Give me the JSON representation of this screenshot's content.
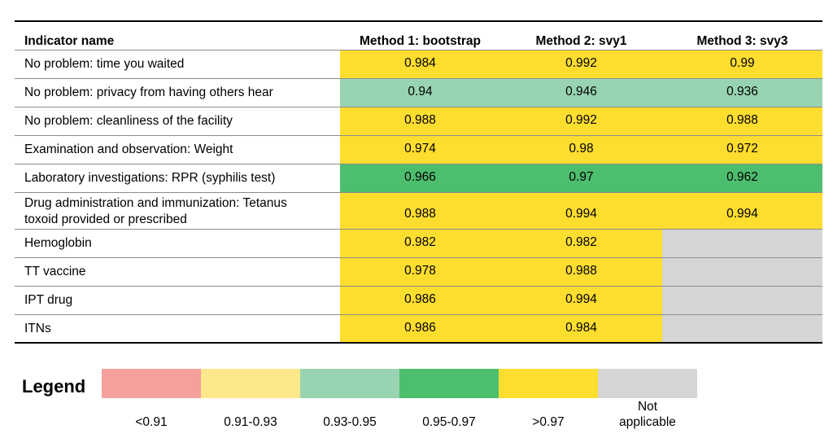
{
  "table": {
    "headers": [
      "Indicator name",
      "Method 1: bootstrap",
      "Method 2: svy1",
      "Method 3: svy3"
    ],
    "rows": [
      {
        "name": "No problem: time you waited",
        "values": [
          "0.984",
          "0.992",
          "0.99"
        ],
        "categories": [
          "gt097",
          "gt097",
          "gt097"
        ]
      },
      {
        "name": "No problem: privacy from having others hear",
        "values": [
          "0.94",
          "0.946",
          "0.936"
        ],
        "categories": [
          "r093_095",
          "r093_095",
          "r093_095"
        ]
      },
      {
        "name": "No problem: cleanliness of the facility",
        "values": [
          "0.988",
          "0.992",
          "0.988"
        ],
        "categories": [
          "gt097",
          "gt097",
          "gt097"
        ]
      },
      {
        "name": "Examination and observation: Weight",
        "values": [
          "0.974",
          "0.98",
          "0.972"
        ],
        "categories": [
          "gt097",
          "gt097",
          "gt097"
        ]
      },
      {
        "name": "Laboratory investigations: RPR (syphilis test)",
        "values": [
          "0.966",
          "0.97",
          "0.962"
        ],
        "categories": [
          "r095_097",
          "r095_097",
          "r095_097"
        ]
      },
      {
        "name": "Drug administration and immunization: Tetanus\ntoxoid provided or prescribed",
        "values": [
          "0.988",
          "0.994",
          "0.994"
        ],
        "categories": [
          "gt097",
          "gt097",
          "gt097"
        ]
      },
      {
        "name": "Hemoglobin",
        "values": [
          "0.982",
          "0.982",
          ""
        ],
        "categories": [
          "gt097",
          "gt097",
          "na"
        ]
      },
      {
        "name": "TT vaccine",
        "values": [
          "0.978",
          "0.988",
          ""
        ],
        "categories": [
          "gt097",
          "gt097",
          "na"
        ]
      },
      {
        "name": "IPT drug",
        "values": [
          "0.986",
          "0.994",
          ""
        ],
        "categories": [
          "gt097",
          "gt097",
          "na"
        ]
      },
      {
        "name": "ITNs",
        "values": [
          "0.986",
          "0.984",
          ""
        ],
        "categories": [
          "gt097",
          "gt097",
          "na"
        ]
      }
    ]
  },
  "legend": {
    "title": "Legend",
    "items": [
      {
        "key": "lt091",
        "label": "<0.91",
        "color": "#f4a09c"
      },
      {
        "key": "r091_093",
        "label": "0.91-0.93",
        "color": "#fde98b"
      },
      {
        "key": "r093_095",
        "label": "0.93-0.95",
        "color": "#98d4b1"
      },
      {
        "key": "r095_097",
        "label": "0.95-0.97",
        "color": "#4dbd6e"
      },
      {
        "key": "gt097",
        "label": ">0.97",
        "color": "#fddd2e"
      },
      {
        "key": "na",
        "label": "Not\napplicable",
        "color": "#d5d5d5"
      }
    ]
  },
  "chart_data": {
    "type": "table",
    "columns": [
      "Indicator name",
      "Method 1: bootstrap",
      "Method 2: svy1",
      "Method 3: svy3"
    ],
    "rows": [
      [
        "No problem: time you waited",
        0.984,
        0.992,
        0.99
      ],
      [
        "No problem: privacy from having others hear",
        0.94,
        0.946,
        0.936
      ],
      [
        "No problem: cleanliness of the facility",
        0.988,
        0.992,
        0.988
      ],
      [
        "Examination and observation: Weight",
        0.974,
        0.98,
        0.972
      ],
      [
        "Laboratory investigations: RPR (syphilis test)",
        0.966,
        0.97,
        0.962
      ],
      [
        "Drug administration and immunization: Tetanus toxoid provided or prescribed",
        0.988,
        0.994,
        0.994
      ],
      [
        "Hemoglobin",
        0.982,
        0.982,
        null
      ],
      [
        "TT vaccine",
        0.978,
        0.988,
        null
      ],
      [
        "IPT drug",
        0.986,
        0.994,
        null
      ],
      [
        "ITNs",
        0.986,
        0.984,
        null
      ]
    ]
  }
}
